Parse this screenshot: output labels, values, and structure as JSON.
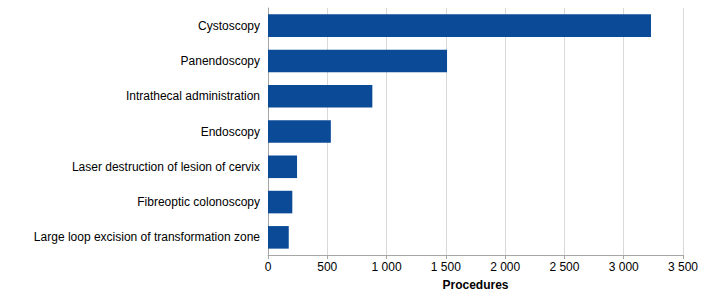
{
  "chart_data": {
    "type": "bar",
    "orientation": "horizontal",
    "categories": [
      "Cystoscopy",
      "Panendoscopy",
      "Intrathecal administration",
      "Endoscopy",
      "Laser destruction of lesion of cervix",
      "Fibreoptic colonoscopy",
      "Large loop excision of transformation zone"
    ],
    "values": [
      3230,
      1510,
      880,
      530,
      245,
      205,
      175
    ],
    "color": "#0b4a97",
    "x_label": "Procedures",
    "xlim": [
      0,
      3500
    ],
    "xticks": [
      0,
      500,
      {
        "value": 1000,
        "label": "1 000"
      },
      {
        "value": 1500,
        "label": "1 500"
      },
      {
        "value": 2000,
        "label": "2 000"
      },
      {
        "value": 2500,
        "label": "2 500"
      },
      {
        "value": 3000,
        "label": "3 000"
      },
      {
        "value": 3500,
        "label": "3 500"
      }
    ],
    "grid": true
  }
}
